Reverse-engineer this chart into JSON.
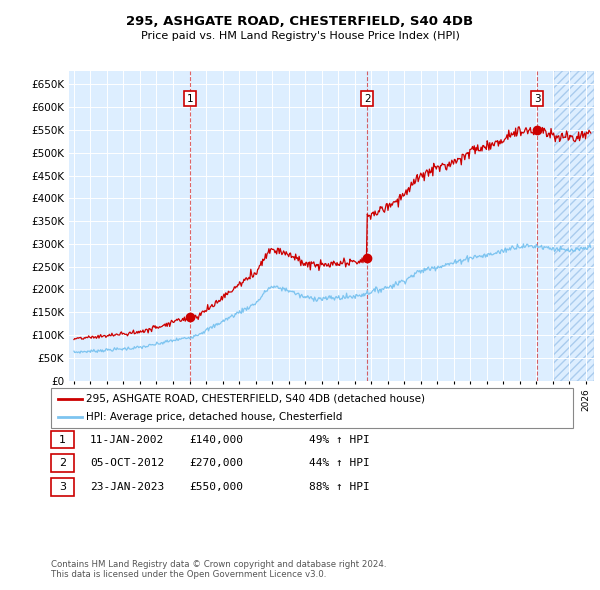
{
  "title_line1": "295, ASHGATE ROAD, CHESTERFIELD, S40 4DB",
  "title_line2": "Price paid vs. HM Land Registry's House Price Index (HPI)",
  "ylabel_ticks": [
    "£0",
    "£50K",
    "£100K",
    "£150K",
    "£200K",
    "£250K",
    "£300K",
    "£350K",
    "£400K",
    "£450K",
    "£500K",
    "£550K",
    "£600K",
    "£650K"
  ],
  "ytick_values": [
    0,
    50000,
    100000,
    150000,
    200000,
    250000,
    300000,
    350000,
    400000,
    450000,
    500000,
    550000,
    600000,
    650000
  ],
  "xlim_start": 1994.7,
  "xlim_end": 2026.5,
  "ylim_min": 0,
  "ylim_max": 680000,
  "sale_dates": [
    2002.03,
    2012.76,
    2023.06
  ],
  "sale_prices": [
    140000,
    270000,
    550000
  ],
  "sale_labels": [
    "1",
    "2",
    "3"
  ],
  "hpi_color": "#7dc4f0",
  "price_color": "#cc0000",
  "bg_color": "#ddeeff",
  "legend_label_price": "295, ASHGATE ROAD, CHESTERFIELD, S40 4DB (detached house)",
  "legend_label_hpi": "HPI: Average price, detached house, Chesterfield",
  "table_rows": [
    [
      "1",
      "11-JAN-2002",
      "£140,000",
      "49% ↑ HPI"
    ],
    [
      "2",
      "05-OCT-2012",
      "£270,000",
      "44% ↑ HPI"
    ],
    [
      "3",
      "23-JAN-2023",
      "£550,000",
      "88% ↑ HPI"
    ]
  ],
  "footnote": "Contains HM Land Registry data © Crown copyright and database right 2024.\nThis data is licensed under the Open Government Licence v3.0.",
  "xtick_years": [
    1995,
    1996,
    1997,
    1998,
    1999,
    2000,
    2001,
    2002,
    2003,
    2004,
    2005,
    2006,
    2007,
    2008,
    2009,
    2010,
    2011,
    2012,
    2013,
    2014,
    2015,
    2016,
    2017,
    2018,
    2019,
    2020,
    2021,
    2022,
    2023,
    2024,
    2025,
    2026
  ],
  "hatch_start": 2024.08
}
